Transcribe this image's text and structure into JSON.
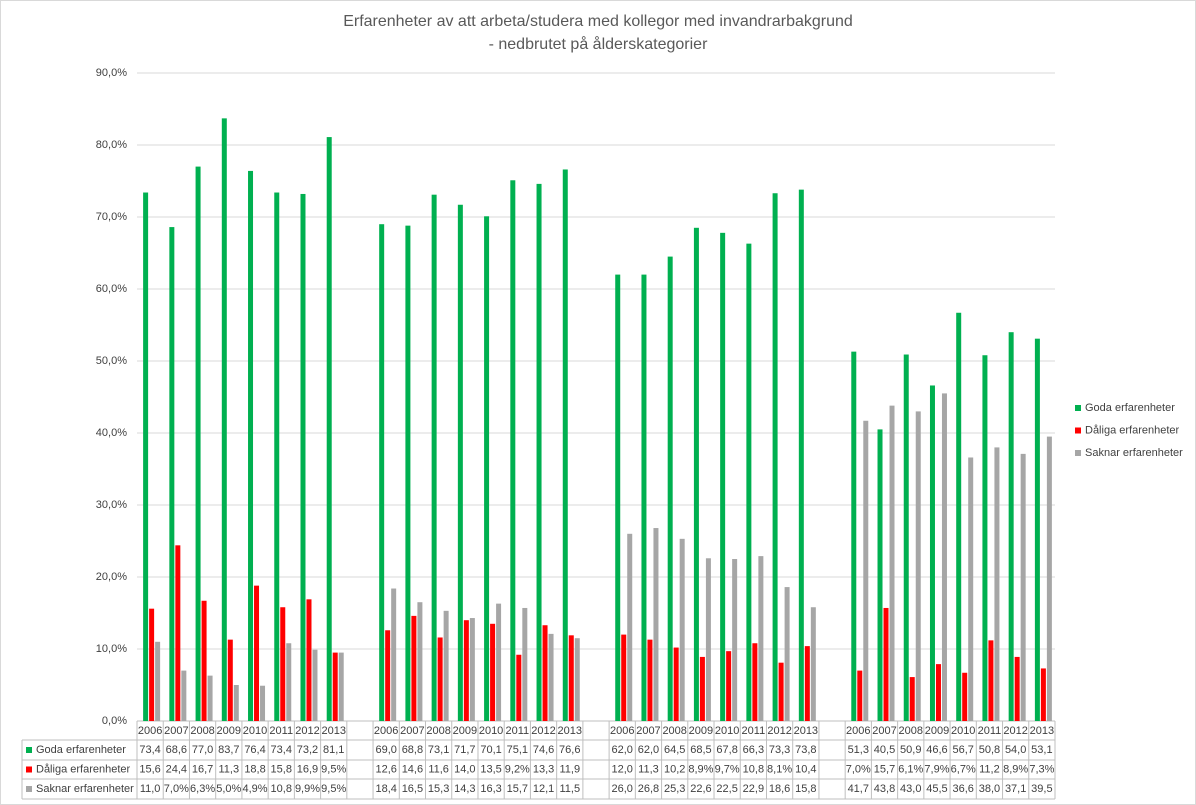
{
  "chart_data": {
    "type": "bar",
    "title": "Erfarenheter av att arbeta/studera med kollegor med invandrarbakgrund",
    "subtitle": "- nedbrutet på ålderskategorier",
    "categories": [
      "2006",
      "2007",
      "2008",
      "2009",
      "2010",
      "2011",
      "2012",
      "2013",
      null,
      "2006",
      "2007",
      "2008",
      "2009",
      "2010",
      "2011",
      "2012",
      "2013",
      null,
      "2006",
      "2007",
      "2008",
      "2009",
      "2010",
      "2011",
      "2012",
      "2013",
      null,
      "2006",
      "2007",
      "2008",
      "2009",
      "2010",
      "2011",
      "2012",
      "2013"
    ],
    "series": [
      {
        "name": "Goda erfarenheter",
        "color": "#00b050",
        "values": [
          73.4,
          68.6,
          77.0,
          83.7,
          76.4,
          73.4,
          73.2,
          81.1,
          null,
          69.0,
          68.8,
          73.1,
          71.7,
          70.1,
          75.1,
          74.6,
          76.6,
          null,
          62.0,
          62.0,
          64.5,
          68.5,
          67.8,
          66.3,
          73.3,
          73.8,
          null,
          51.3,
          40.5,
          50.9,
          46.6,
          56.7,
          50.8,
          54.0,
          53.1
        ],
        "value_labels": [
          "73,4",
          "68,6",
          "77,0",
          "83,7",
          "76,4",
          "73,4",
          "73,2",
          "81,1",
          null,
          "69,0",
          "68,8",
          "73,1",
          "71,7",
          "70,1",
          "75,1",
          "74,6",
          "76,6",
          null,
          "62,0",
          "62,0",
          "64,5",
          "68,5",
          "67,8",
          "66,3",
          "73,3",
          "73,8",
          null,
          "51,3",
          "40,5",
          "50,9",
          "46,6",
          "56,7",
          "50,8",
          "54,0",
          "53,1"
        ]
      },
      {
        "name": "Dåliga erfarenheter",
        "color": "#ff0000",
        "values": [
          15.6,
          24.4,
          16.7,
          11.3,
          18.8,
          15.8,
          16.9,
          9.5,
          null,
          12.6,
          14.6,
          11.6,
          14.0,
          13.5,
          9.2,
          13.3,
          11.9,
          null,
          12.0,
          11.3,
          10.2,
          8.9,
          9.7,
          10.8,
          8.1,
          10.4,
          null,
          7.0,
          15.7,
          6.1,
          7.9,
          6.7,
          11.2,
          8.9,
          7.3
        ],
        "value_labels": [
          "15,6",
          "24,4",
          "16,7",
          "11,3",
          "18,8",
          "15,8",
          "16,9",
          "9,5%",
          null,
          "12,6",
          "14,6",
          "11,6",
          "14,0",
          "13,5",
          "9,2%",
          "13,3",
          "11,9",
          null,
          "12,0",
          "11,3",
          "10,2",
          "8,9%",
          "9,7%",
          "10,8",
          "8,1%",
          "10,4",
          null,
          "7,0%",
          "15,7",
          "6,1%",
          "7,9%",
          "6,7%",
          "11,2",
          "8,9%",
          "7,3%"
        ]
      },
      {
        "name": "Saknar erfarenheter",
        "color": "#a6a6a6",
        "values": [
          11.0,
          7.0,
          6.3,
          5.0,
          4.9,
          10.8,
          9.9,
          9.5,
          null,
          18.4,
          16.5,
          15.3,
          14.3,
          16.3,
          15.7,
          12.1,
          11.5,
          null,
          26.0,
          26.8,
          25.3,
          22.6,
          22.5,
          22.9,
          18.6,
          15.8,
          null,
          41.7,
          43.8,
          43.0,
          45.5,
          36.6,
          38.0,
          37.1,
          39.5
        ],
        "value_labels": [
          "11,0",
          "7,0%",
          "6,3%",
          "5,0%",
          "4,9%",
          "10,8",
          "9,9%",
          "9,5%",
          null,
          "18,4",
          "16,5",
          "15,3",
          "14,3",
          "16,3",
          "15,7",
          "12,1",
          "11,5",
          null,
          "26,0",
          "26,8",
          "25,3",
          "22,6",
          "22,5",
          "22,9",
          "18,6",
          "15,8",
          null,
          "41,7",
          "43,8",
          "43,0",
          "45,5",
          "36,6",
          "38,0",
          "37,1",
          "39,5"
        ]
      }
    ],
    "ylim": [
      0,
      90
    ],
    "yticks": [
      {
        "value": 0,
        "label": "0,0%"
      },
      {
        "value": 10,
        "label": "10,0%"
      },
      {
        "value": 20,
        "label": "20,0%"
      },
      {
        "value": 30,
        "label": "30,0%"
      },
      {
        "value": 40,
        "label": "40,0%"
      },
      {
        "value": 50,
        "label": "50,0%"
      },
      {
        "value": 60,
        "label": "60,0%"
      },
      {
        "value": 70,
        "label": "70,0%"
      },
      {
        "value": 80,
        "label": "80,0%"
      },
      {
        "value": 90,
        "label": "90,0%"
      }
    ],
    "grid": true,
    "legend": "right"
  }
}
